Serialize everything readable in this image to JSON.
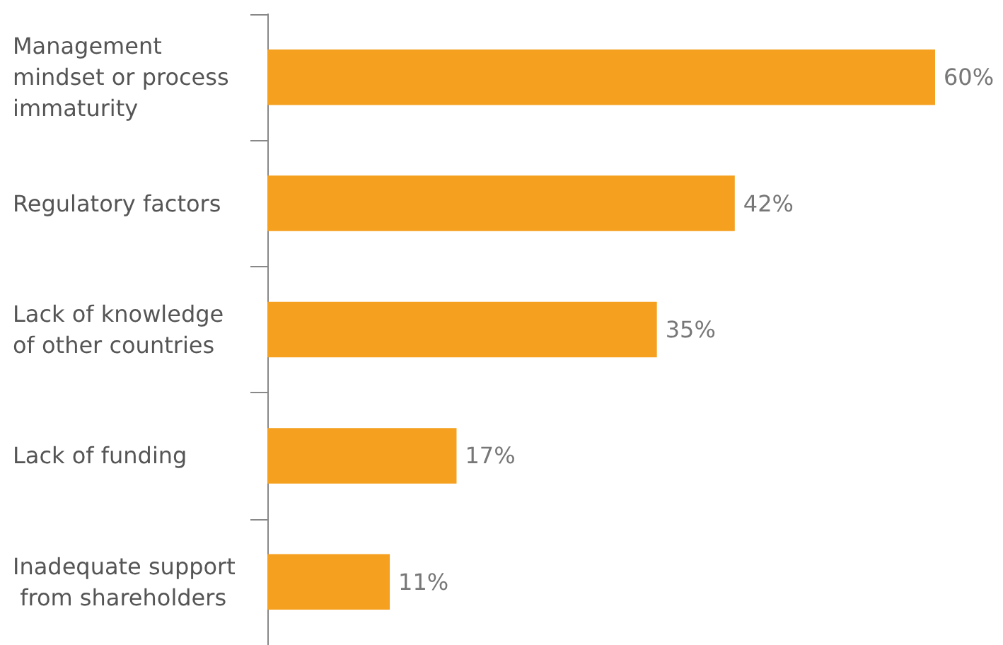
{
  "chart_data": {
    "type": "bar",
    "orientation": "horizontal",
    "categories": [
      "Management mindset or process immaturity",
      "Regulatory factors",
      "Lack of knowledge of other countries",
      "Lack of funding",
      "Inadequate support from shareholders"
    ],
    "values": [
      60,
      42,
      35,
      17,
      11
    ],
    "value_labels": [
      "60%",
      "42%",
      "35%",
      "17%",
      "11%"
    ],
    "color": "#f5a01e"
  }
}
